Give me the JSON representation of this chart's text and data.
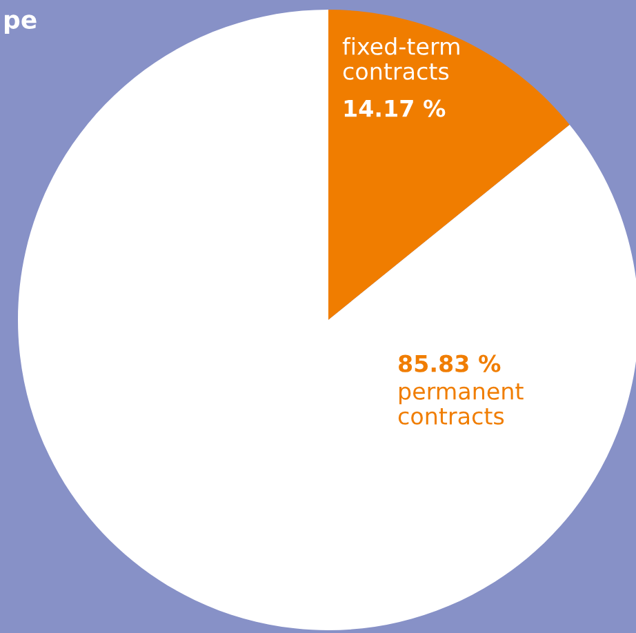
{
  "chart_data": {
    "type": "pie",
    "title": "pe",
    "categories": [
      "fixed-term\ncontracts",
      "permanent\ncontracts"
    ],
    "values": [
      14.17,
      85.83
    ],
    "value_labels": [
      "14.17 %",
      "85.83 %"
    ],
    "colors": [
      "#f07d00",
      "#ffffff"
    ],
    "legend": false
  }
}
